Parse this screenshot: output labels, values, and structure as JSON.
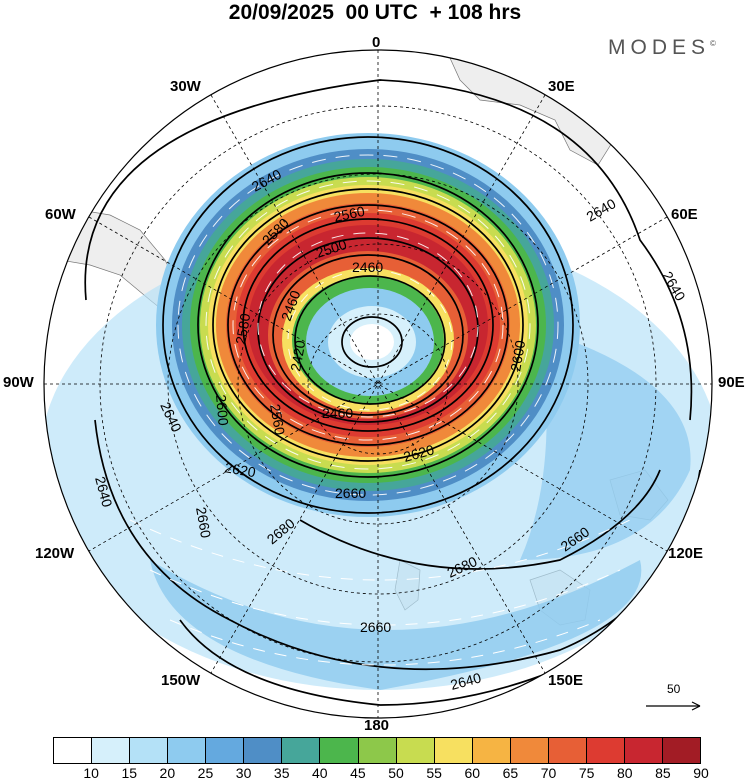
{
  "header": {
    "title": "20/09/2025  00 UTC  + 108 hrs",
    "brand": "MODES",
    "brand_mark": "©"
  },
  "map": {
    "projection": "polar-stereographic",
    "hemisphere": "south",
    "longitude_labels": [
      "0",
      "30E",
      "60E",
      "90E",
      "120E",
      "150E",
      "180",
      "150W",
      "120W",
      "90W",
      "60W",
      "30W"
    ],
    "contour_labels": [
      "2640",
      "2560",
      "2580",
      "2500",
      "2460",
      "2460",
      "2420",
      "2600",
      "2580",
      "2560",
      "2600",
      "2460",
      "2620",
      "2620",
      "2660",
      "2640",
      "2640",
      "2640",
      "2640",
      "2660",
      "2680",
      "2680",
      "2660",
      "2660",
      "2640"
    ],
    "land_color": "#eeeeee",
    "contour_color": "#000000",
    "vector_color": "#ffffff"
  },
  "legend": {
    "vector_reference": "50",
    "colorbar_ticks": [
      "10",
      "15",
      "20",
      "25",
      "30",
      "35",
      "40",
      "45",
      "50",
      "55",
      "60",
      "65",
      "70",
      "75",
      "80",
      "85",
      "90"
    ],
    "colorbar_colors": [
      "#ffffff",
      "#d6f0fb",
      "#b4e1f7",
      "#8ecbef",
      "#64a9df",
      "#4f8ec6",
      "#46a69a",
      "#4cb64c",
      "#8dc84a",
      "#c8dc50",
      "#f7e060",
      "#f6b443",
      "#f0893a",
      "#e75f36",
      "#dd3b31",
      "#c82630",
      "#a21c25"
    ]
  }
}
